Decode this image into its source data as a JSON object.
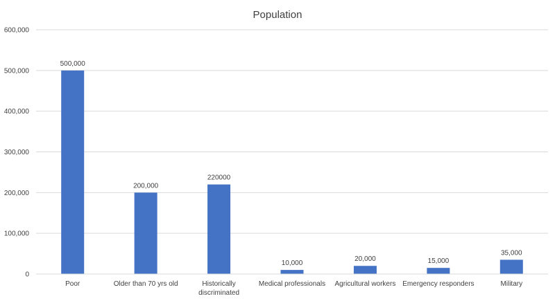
{
  "chart_data": {
    "type": "bar",
    "title": "Population",
    "xlabel": "",
    "ylabel": "",
    "categories": [
      [
        "Poor"
      ],
      [
        "Older than 70 yrs old"
      ],
      [
        "Historically",
        "discriminated"
      ],
      [
        "Medical professionals"
      ],
      [
        "Agricultural workers"
      ],
      [
        "Emergency responders"
      ],
      [
        "Military"
      ]
    ],
    "values": [
      500000,
      200000,
      220000,
      10000,
      20000,
      15000,
      35000
    ],
    "data_labels": [
      "500,000",
      "200,000",
      "220000",
      "10,000",
      "20,000",
      "15,000",
      "35,000"
    ],
    "ylim": [
      0,
      600000
    ],
    "y_ticks": [
      0,
      100000,
      200000,
      300000,
      400000,
      500000,
      600000
    ],
    "y_tick_labels": [
      "0",
      "100,000",
      "200,000",
      "300,000",
      "400,000",
      "500,000",
      "600,000"
    ],
    "grid": true,
    "legend": "none",
    "bar_color": "#4472C4"
  }
}
